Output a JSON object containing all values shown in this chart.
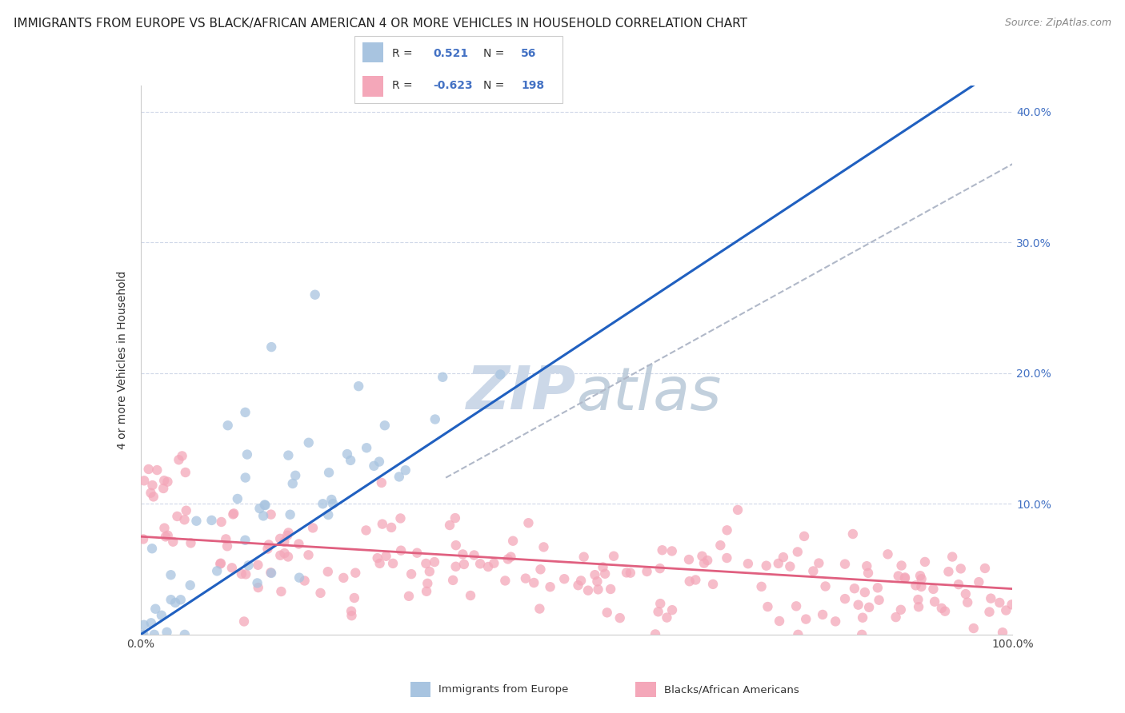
{
  "title": "IMMIGRANTS FROM EUROPE VS BLACK/AFRICAN AMERICAN 4 OR MORE VEHICLES IN HOUSEHOLD CORRELATION CHART",
  "source": "Source: ZipAtlas.com",
  "ylabel": "4 or more Vehicles in Household",
  "legend_label1": "Immigrants from Europe",
  "legend_label2": "Blacks/African Americans",
  "R1": 0.521,
  "N1": 56,
  "R2": -0.623,
  "N2": 198,
  "color1": "#a8c4e0",
  "color2": "#f4a7b9",
  "line_color1": "#2060c0",
  "line_color2": "#e06080",
  "dashed_line_color": "#b0b8c8",
  "xlim": [
    0,
    100
  ],
  "ylim": [
    0,
    42
  ],
  "background_color": "#ffffff",
  "watermark_color": "#ccd8e8",
  "title_fontsize": 11,
  "axis_label_fontsize": 10,
  "tick_fontsize": 10,
  "legend_fontsize": 11,
  "source_fontsize": 9,
  "dot_size": 80,
  "dot_alpha": 0.75
}
